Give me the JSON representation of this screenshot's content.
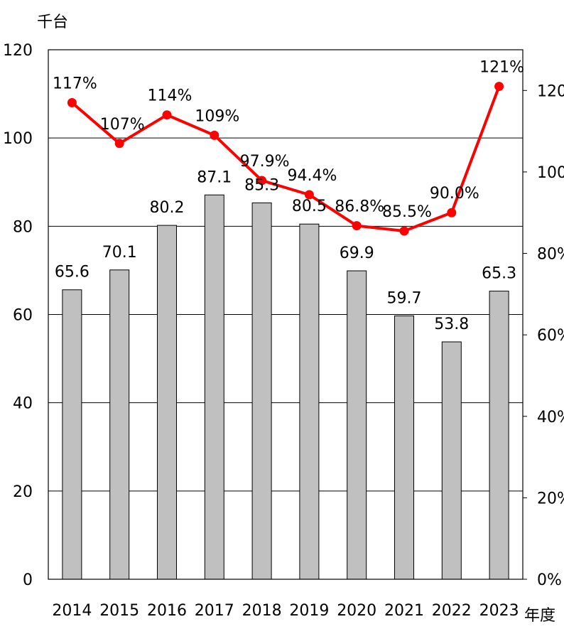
{
  "chart_data": {
    "type": "bar",
    "categories": [
      "2014",
      "2015",
      "2016",
      "2017",
      "2018",
      "2019",
      "2020",
      "2021",
      "2022",
      "2023"
    ],
    "series": [
      {
        "type": "bar",
        "axis": "left",
        "values": [
          65.6,
          70.1,
          80.2,
          87.1,
          85.3,
          80.5,
          69.9,
          59.7,
          53.8,
          65.3
        ],
        "labels": [
          "65.6",
          "70.1",
          "80.2",
          "87.1",
          "85.3",
          "80.5",
          "69.9",
          "59.7",
          "53.8",
          "65.3"
        ],
        "color": "#c0c0c0"
      },
      {
        "type": "line",
        "axis": "right",
        "values": [
          117,
          107,
          114,
          109,
          97.9,
          94.4,
          86.8,
          85.5,
          90.0,
          121
        ],
        "labels": [
          "117%",
          "107%",
          "114%",
          "109%",
          "97.9%",
          "94.4%",
          "86.8%",
          "85.5%",
          "90.0%",
          "121%"
        ],
        "color": "#ff0000"
      }
    ],
    "ylabel": "千台",
    "xlabel": "年度",
    "ylim": [
      0,
      120
    ],
    "yticks": [
      "0",
      "20",
      "40",
      "60",
      "80",
      "100",
      "120"
    ],
    "y2lim": [
      0,
      130
    ],
    "y2ticks": [
      "0%",
      "20%",
      "40%",
      "60%",
      "80%",
      "100%",
      "120%"
    ],
    "grid": true
  }
}
